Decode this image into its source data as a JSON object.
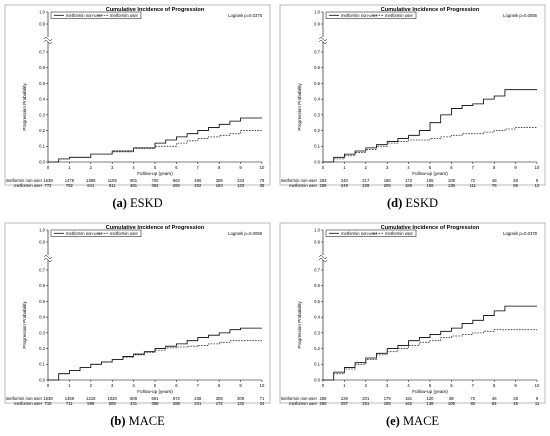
{
  "panels": [
    {
      "caption_letter": "(a)",
      "caption_text": " ESKD",
      "chart_data": {
        "type": "line",
        "title": "Cumulative Incidence of Progression",
        "xlabel": "Follow-up (years)",
        "ylabel": "Progression Probability",
        "xlim": [
          0,
          10
        ],
        "ylim": [
          0,
          1.0
        ],
        "axis_break": true,
        "x_ticks": [
          "0",
          "1",
          "2",
          "3",
          "4",
          "5",
          "6",
          "7",
          "8",
          "9",
          "10"
        ],
        "y_ticks": [
          "0.0",
          "0.1",
          "0.2",
          "0.3",
          "0.4",
          "0.5",
          "0.6",
          "0.7",
          "0.8",
          "0.9",
          "1.0"
        ],
        "legend": "top-left",
        "p_value": "Logrank p=0.0375",
        "series": [
          {
            "name": "metformin non-user",
            "style": "solid",
            "x": [
              0,
              0.5,
              1,
              2,
              3,
              4,
              5,
              5.5,
              6,
              6.5,
              7,
              7.5,
              8,
              8.5,
              9,
              10
            ],
            "y": [
              0,
              0.02,
              0.03,
              0.05,
              0.07,
              0.09,
              0.12,
              0.14,
              0.16,
              0.18,
              0.2,
              0.22,
              0.24,
              0.26,
              0.28,
              0.28
            ]
          },
          {
            "name": "metformin user",
            "style": "dashed",
            "x": [
              0,
              0.5,
              1,
              2,
              3,
              4,
              5,
              6,
              6.5,
              7,
              7.5,
              8,
              8.5,
              9,
              10
            ],
            "y": [
              0,
              0.02,
              0.03,
              0.05,
              0.065,
              0.085,
              0.1,
              0.12,
              0.135,
              0.15,
              0.16,
              0.17,
              0.18,
              0.2,
              0.2
            ]
          }
        ],
        "risk_table": [
          {
            "label": "metformin non-user",
            "values": [
              "1538",
              "1475",
              "1388",
              "1109",
              "801",
              "700",
              "563",
              "486",
              "308",
              "233",
              "79"
            ]
          },
          {
            "label": "metformin user",
            "values": [
              "772",
              "762",
              "641",
              "511",
              "481",
              "362",
              "282",
              "262",
              "183",
              "133",
              "35"
            ]
          }
        ]
      }
    },
    {
      "caption_letter": "(d)",
      "caption_text": " ESKD",
      "chart_data": {
        "type": "line",
        "title": "Cumulative Incidence of Progression",
        "xlabel": "Follow-up (years)",
        "ylabel": "Progression Probability",
        "xlim": [
          0,
          10
        ],
        "ylim": [
          0,
          1.0
        ],
        "axis_break": true,
        "x_ticks": [
          "0",
          "1",
          "2",
          "3",
          "4",
          "5",
          "6",
          "7",
          "8",
          "9",
          "10"
        ],
        "y_ticks": [
          "0.0",
          "0.1",
          "0.2",
          "0.3",
          "0.4",
          "0.5",
          "0.6",
          "0.7",
          "0.8",
          "0.9",
          "1.0"
        ],
        "legend": "top-left",
        "p_value": "Logrank p=0.0055",
        "series": [
          {
            "name": "metformin non-user",
            "style": "solid",
            "x": [
              0,
              0.5,
              1,
              1.5,
              2,
              2.5,
              3,
              3.5,
              4,
              4.5,
              5,
              5.5,
              6,
              6.5,
              7,
              7.5,
              8,
              8.5,
              9,
              10
            ],
            "y": [
              0,
              0.03,
              0.05,
              0.07,
              0.09,
              0.11,
              0.13,
              0.15,
              0.17,
              0.2,
              0.25,
              0.3,
              0.34,
              0.36,
              0.37,
              0.4,
              0.42,
              0.46,
              0.46,
              0.46
            ]
          },
          {
            "name": "metformin user",
            "style": "dashed",
            "x": [
              0,
              0.5,
              1,
              1.5,
              2,
              2.5,
              3,
              3.5,
              4,
              4.5,
              5,
              5.5,
              6,
              6.5,
              7,
              7.5,
              8,
              8.5,
              9,
              10
            ],
            "y": [
              0,
              0.02,
              0.04,
              0.06,
              0.08,
              0.1,
              0.12,
              0.13,
              0.14,
              0.14,
              0.15,
              0.16,
              0.17,
              0.18,
              0.18,
              0.19,
              0.2,
              0.21,
              0.22,
              0.22
            ]
          }
        ],
        "risk_table": [
          {
            "label": "metformin non-user",
            "values": [
              "263",
              "240",
              "217",
              "186",
              "172",
              "165",
              "108",
              "72",
              "48",
              "28",
              "9"
            ]
          },
          {
            "label": "metformin user",
            "values": [
              "259",
              "249",
              "228",
              "206",
              "186",
              "156",
              "138",
              "111",
              "76",
              "55",
              "12"
            ]
          }
        ]
      }
    },
    {
      "caption_letter": "(b)",
      "caption_text": " MACE",
      "chart_data": {
        "type": "line",
        "title": "Cumulative Incidence of Progression",
        "xlabel": "Follow-up (years)",
        "ylabel": "Progression Probability",
        "xlim": [
          0,
          10
        ],
        "ylim": [
          0,
          1.0
        ],
        "axis_break": true,
        "x_ticks": [
          "0",
          "1",
          "2",
          "3",
          "4",
          "5",
          "6",
          "7",
          "8",
          "9",
          "10"
        ],
        "y_ticks": [
          "0.0",
          "0.1",
          "0.2",
          "0.3",
          "0.4",
          "0.5",
          "0.6",
          "0.7",
          "0.8",
          "0.9",
          "1.0"
        ],
        "legend": "top-left",
        "p_value": "Logrank p=0.0059",
        "series": [
          {
            "name": "metformin non-user",
            "style": "solid",
            "x": [
              0,
              0.5,
              1,
              1.5,
              2,
              2.5,
              3,
              3.5,
              4,
              4.5,
              5,
              5.5,
              6,
              6.5,
              7,
              7.5,
              8,
              8.5,
              9,
              10
            ],
            "y": [
              0,
              0.04,
              0.06,
              0.08,
              0.1,
              0.115,
              0.13,
              0.15,
              0.165,
              0.18,
              0.2,
              0.215,
              0.23,
              0.25,
              0.27,
              0.285,
              0.3,
              0.32,
              0.33,
              0.33
            ]
          },
          {
            "name": "metformin user",
            "style": "dashed",
            "x": [
              0,
              0.5,
              1,
              1.5,
              2,
              2.5,
              3,
              3.5,
              4,
              4.5,
              5,
              5.5,
              6,
              6.5,
              7,
              7.5,
              8,
              8.5,
              9,
              10
            ],
            "y": [
              0,
              0.04,
              0.06,
              0.08,
              0.1,
              0.115,
              0.13,
              0.145,
              0.16,
              0.175,
              0.19,
              0.205,
              0.21,
              0.215,
              0.22,
              0.23,
              0.24,
              0.25,
              0.25,
              0.25
            ]
          }
        ],
        "risk_table": [
          {
            "label": "metformin non-user",
            "values": [
              "1538",
              "1459",
              "1218",
              "1020",
              "808",
              "691",
              "572",
              "438",
              "308",
              "209",
              "71"
            ]
          },
          {
            "label": "metformin user",
            "values": [
              "710",
              "711",
              "598",
              "508",
              "431",
              "358",
              "286",
              "231",
              "172",
              "132",
              "34"
            ]
          }
        ]
      }
    },
    {
      "caption_letter": "(e)",
      "caption_text": " MACE",
      "chart_data": {
        "type": "line",
        "title": "Cumulative Incidence of Progression",
        "xlabel": "Follow-up (years)",
        "ylabel": "Progression Probability",
        "xlim": [
          0,
          10
        ],
        "ylim": [
          0,
          1.0
        ],
        "axis_break": true,
        "x_ticks": [
          "0",
          "1",
          "2",
          "3",
          "4",
          "5",
          "6",
          "7",
          "8",
          "9",
          "10"
        ],
        "y_ticks": [
          "0.0",
          "0.1",
          "0.2",
          "0.3",
          "0.4",
          "0.5",
          "0.6",
          "0.7",
          "0.8",
          "0.9",
          "1.0"
        ],
        "legend": "top-left",
        "p_value": "Logrank p=0.0379",
        "series": [
          {
            "name": "metformin non-user",
            "style": "solid",
            "x": [
              0,
              0.5,
              1,
              1.5,
              2,
              2.5,
              3,
              3.5,
              4,
              4.5,
              5,
              5.5,
              6,
              6.5,
              7,
              7.5,
              8,
              8.5,
              9,
              10
            ],
            "y": [
              0,
              0.05,
              0.08,
              0.11,
              0.14,
              0.17,
              0.2,
              0.22,
              0.25,
              0.27,
              0.29,
              0.31,
              0.33,
              0.36,
              0.38,
              0.41,
              0.44,
              0.47,
              0.47,
              0.47
            ]
          },
          {
            "name": "metformin user",
            "style": "dashed",
            "x": [
              0,
              0.5,
              1,
              1.5,
              2,
              2.5,
              3,
              3.5,
              4,
              4.5,
              5,
              5.5,
              6,
              6.5,
              7,
              7.5,
              8,
              8.5,
              9,
              10
            ],
            "y": [
              0,
              0.04,
              0.07,
              0.1,
              0.13,
              0.16,
              0.18,
              0.2,
              0.22,
              0.24,
              0.25,
              0.27,
              0.28,
              0.29,
              0.3,
              0.31,
              0.32,
              0.32,
              0.32,
              0.32
            ]
          }
        ],
        "risk_table": [
          {
            "label": "metformin non-user",
            "values": [
              "259",
              "229",
              "201",
              "179",
              "151",
              "120",
              "88",
              "72",
              "46",
              "28",
              "9"
            ]
          },
          {
            "label": "metformin user",
            "values": [
              "260",
              "257",
              "251",
              "185",
              "162",
              "136",
              "106",
              "82",
              "64",
              "45",
              "11"
            ]
          }
        ]
      }
    }
  ]
}
